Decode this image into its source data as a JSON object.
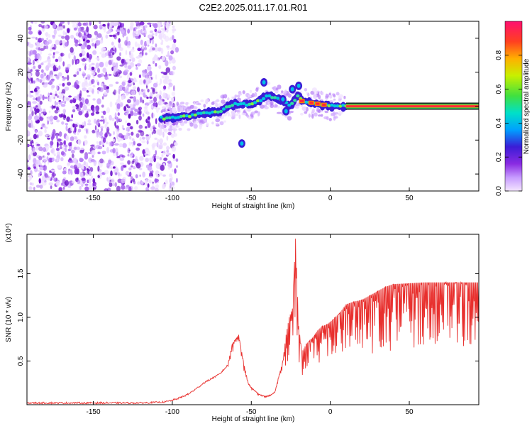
{
  "title": "C2E2.2025.011.17.01.R01",
  "colors": {
    "snr_line": "#e8302e",
    "frame": "#000000",
    "colorbar": [
      "#f0d8ff",
      "#8a2be2",
      "#3b1cd6",
      "#00a0ff",
      "#00e0c8",
      "#40e040",
      "#f0f000",
      "#ff8000",
      "#ff1060"
    ]
  },
  "chart_data": [
    {
      "type": "heatmap",
      "xlabel": "Height of straight line (km)",
      "ylabel": "Frequency (Hz)",
      "xlim": [
        -192,
        94
      ],
      "ylim": [
        -50,
        50
      ],
      "x_ticks": [
        -150,
        -100,
        -50,
        0,
        50
      ],
      "y_ticks": [
        -40,
        -20,
        0,
        20,
        40
      ],
      "colorbar": {
        "label": "Normalized spectral amplitude",
        "range": [
          0,
          1
        ],
        "ticks": [
          "0.0",
          "0.2",
          "0.4",
          "0.6",
          "0.8"
        ]
      },
      "noise_region_x": [
        -192,
        -97
      ],
      "main_trace": [
        {
          "x": -107,
          "y": -7
        },
        {
          "x": -100,
          "y": -7
        },
        {
          "x": -95,
          "y": -6
        },
        {
          "x": -90,
          "y": -6
        },
        {
          "x": -85,
          "y": -5
        },
        {
          "x": -80,
          "y": -4
        },
        {
          "x": -75,
          "y": -4
        },
        {
          "x": -70,
          "y": -3
        },
        {
          "x": -65,
          "y": 0
        },
        {
          "x": -60,
          "y": 1
        },
        {
          "x": -55,
          "y": 1
        },
        {
          "x": -50,
          "y": 1
        },
        {
          "x": -45,
          "y": 3
        },
        {
          "x": -40,
          "y": 6
        },
        {
          "x": -35,
          "y": 5
        },
        {
          "x": -30,
          "y": 3
        },
        {
          "x": -25,
          "y": 0
        },
        {
          "x": -20,
          "y": 7
        },
        {
          "x": -18,
          "y": 3
        },
        {
          "x": -12,
          "y": 2
        },
        {
          "x": -5,
          "y": 1
        },
        {
          "x": 0,
          "y": 0
        },
        {
          "x": 5,
          "y": 0
        },
        {
          "x": 10,
          "y": 0
        },
        {
          "x": 50,
          "y": 0
        },
        {
          "x": 94,
          "y": 0
        }
      ],
      "secondary_blobs": [
        {
          "x": -56,
          "y": -22
        },
        {
          "x": -42,
          "y": 14
        },
        {
          "x": -28,
          "y": -3
        },
        {
          "x": -24,
          "y": 10
        },
        {
          "x": -20,
          "y": 12
        },
        {
          "x": -30,
          "y": 4
        }
      ]
    },
    {
      "type": "line",
      "xlabel": "Height of straight line (km)",
      "ylabel": "SNR (10 * v/v)",
      "y_multiplier": "(x10⁴)",
      "xlim": [
        -192,
        94
      ],
      "ylim": [
        0,
        1.95
      ],
      "x_ticks": [
        -150,
        -100,
        -50,
        0,
        50
      ],
      "y_ticks": [
        0.5,
        1.0,
        1.5
      ],
      "y_tick_labels": [
        "0.5",
        "1.0",
        "1.5"
      ],
      "series": [
        {
          "x": [
            -192,
            -150,
            -120,
            -105,
            -100,
            -95,
            -90,
            -85,
            -80,
            -75,
            -70,
            -65,
            -62,
            -58,
            -55,
            -52,
            -50,
            -47,
            -45,
            -42,
            -40,
            -37,
            -35,
            -33,
            -30,
            -28,
            -26,
            -24,
            -22,
            -20,
            -18,
            -15,
            -12,
            -10,
            -8,
            -5,
            -2,
            0,
            3,
            6,
            10,
            15,
            20,
            25,
            30,
            35,
            40,
            50,
            60,
            70,
            80,
            94
          ],
          "y": [
            0.02,
            0.02,
            0.02,
            0.03,
            0.05,
            0.08,
            0.12,
            0.18,
            0.25,
            0.3,
            0.35,
            0.45,
            0.7,
            0.8,
            0.5,
            0.25,
            0.2,
            0.15,
            0.12,
            0.1,
            0.1,
            0.12,
            0.15,
            0.3,
            0.5,
            0.8,
            1.0,
            1.1,
            1.9,
            0.9,
            0.6,
            0.7,
            0.75,
            0.8,
            0.85,
            0.9,
            0.92,
            0.95,
            1.0,
            1.05,
            1.15,
            1.18,
            1.2,
            1.25,
            1.3,
            1.35,
            1.38,
            1.39,
            1.4,
            1.4,
            1.4,
            1.4
          ]
        }
      ]
    }
  ]
}
